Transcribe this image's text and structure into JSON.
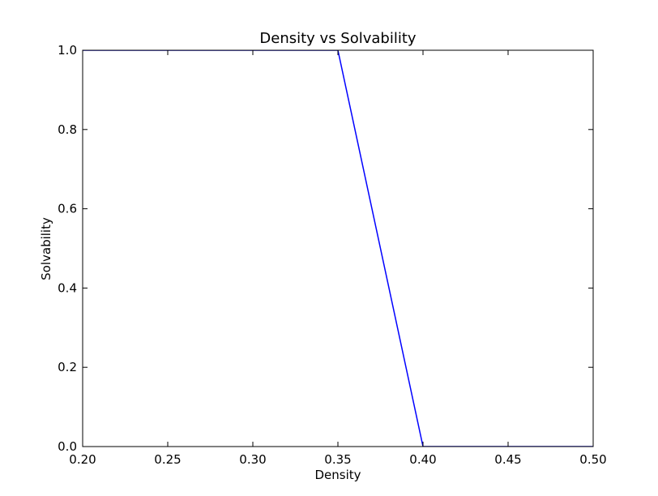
{
  "chart_data": {
    "type": "line",
    "title": "Density vs Solvability",
    "xlabel": "Density",
    "ylabel": "Solvability",
    "xlim": [
      0.2,
      0.5
    ],
    "ylim": [
      0.0,
      1.0
    ],
    "xticks": [
      0.2,
      0.25,
      0.3,
      0.35,
      0.4,
      0.45,
      0.5
    ],
    "xtick_labels": [
      "0.20",
      "0.25",
      "0.30",
      "0.35",
      "0.40",
      "0.45",
      "0.50"
    ],
    "yticks": [
      0.0,
      0.2,
      0.4,
      0.6,
      0.8,
      1.0
    ],
    "ytick_labels": [
      "0.0",
      "0.2",
      "0.4",
      "0.6",
      "0.8",
      "1.0"
    ],
    "grid": false,
    "series": [
      {
        "color": "#0000ff",
        "points": [
          {
            "x": 0.2,
            "y": 1.0
          },
          {
            "x": 0.25,
            "y": 1.0
          },
          {
            "x": 0.3,
            "y": 1.0
          },
          {
            "x": 0.35,
            "y": 1.0
          },
          {
            "x": 0.4,
            "y": 0.0
          },
          {
            "x": 0.45,
            "y": 0.0
          },
          {
            "x": 0.5,
            "y": 0.0
          }
        ]
      }
    ]
  }
}
